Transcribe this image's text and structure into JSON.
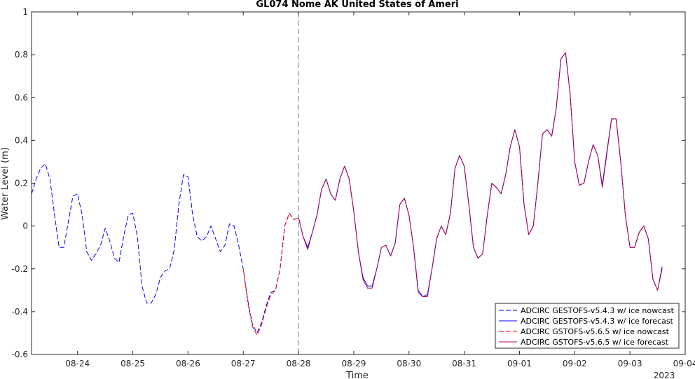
{
  "chart_data": {
    "type": "line",
    "title": "GL074 Nome AK United States of Ameri",
    "xlabel": "Time",
    "ylabel": "Water Level (m)",
    "year_label": "2023",
    "xlim": [
      "2023-08-23 04:00",
      "2023-09-04 00:00"
    ],
    "ylim": [
      -0.6,
      1.0
    ],
    "yticks": [
      -0.6,
      -0.4,
      -0.2,
      0,
      0.2,
      0.4,
      0.6,
      0.8,
      1
    ],
    "ytick_labels": [
      "-0.6",
      "-0.4",
      "-0.2",
      "0",
      "0.2",
      "0.4",
      "0.6",
      "0.8",
      "1"
    ],
    "xticks": [
      "2023-08-24",
      "2023-08-25",
      "2023-08-26",
      "2023-08-27",
      "2023-08-28",
      "2023-08-29",
      "2023-08-30",
      "2023-08-31",
      "2023-09-01",
      "2023-09-02",
      "2023-09-03",
      "2023-09-04"
    ],
    "xtick_labels": [
      "08-24",
      "08-25",
      "08-26",
      "08-27",
      "08-28",
      "08-29",
      "08-30",
      "08-31",
      "09-01",
      "09-02",
      "09-03",
      "09-04"
    ],
    "forecast_start": "2023-08-28 00:00",
    "grid": false,
    "legend_position": "bottom-right",
    "series": [
      {
        "name": "ADCIRC GESTOFS-v5.4.3 w/ ice nowcast",
        "color": "#0000ff",
        "style": "dashed",
        "points": [
          [
            "2023-08-23 04:00",
            0.15
          ],
          [
            "2023-08-23 06:00",
            0.22
          ],
          [
            "2023-08-23 08:00",
            0.27
          ],
          [
            "2023-08-23 10:00",
            0.29
          ],
          [
            "2023-08-23 12:00",
            0.22
          ],
          [
            "2023-08-23 14:00",
            0.05
          ],
          [
            "2023-08-23 16:00",
            -0.1
          ],
          [
            "2023-08-23 18:00",
            -0.1
          ],
          [
            "2023-08-23 20:00",
            0.02
          ],
          [
            "2023-08-23 22:00",
            0.14
          ],
          [
            "2023-08-24 00:00",
            0.15
          ],
          [
            "2023-08-24 02:00",
            0.05
          ],
          [
            "2023-08-24 04:00",
            -0.12
          ],
          [
            "2023-08-24 06:00",
            -0.16
          ],
          [
            "2023-08-24 08:00",
            -0.13
          ],
          [
            "2023-08-24 10:00",
            -0.09
          ],
          [
            "2023-08-24 12:00",
            -0.01
          ],
          [
            "2023-08-24 14:00",
            -0.07
          ],
          [
            "2023-08-24 16:00",
            -0.15
          ],
          [
            "2023-08-24 18:00",
            -0.17
          ],
          [
            "2023-08-24 20:00",
            -0.05
          ],
          [
            "2023-08-24 22:00",
            0.05
          ],
          [
            "2023-08-25 00:00",
            0.06
          ],
          [
            "2023-08-25 02:00",
            -0.05
          ],
          [
            "2023-08-25 04:00",
            -0.28
          ],
          [
            "2023-08-25 06:00",
            -0.36
          ],
          [
            "2023-08-25 08:00",
            -0.36
          ],
          [
            "2023-08-25 10:00",
            -0.32
          ],
          [
            "2023-08-25 12:00",
            -0.24
          ],
          [
            "2023-08-25 14:00",
            -0.21
          ],
          [
            "2023-08-25 16:00",
            -0.2
          ],
          [
            "2023-08-25 18:00",
            -0.11
          ],
          [
            "2023-08-25 20:00",
            0.1
          ],
          [
            "2023-08-25 22:00",
            0.24
          ],
          [
            "2023-08-26 00:00",
            0.23
          ],
          [
            "2023-08-26 02:00",
            0.05
          ],
          [
            "2023-08-26 04:00",
            -0.05
          ],
          [
            "2023-08-26 06:00",
            -0.07
          ],
          [
            "2023-08-26 08:00",
            -0.05
          ],
          [
            "2023-08-26 10:00",
            0.0
          ],
          [
            "2023-08-26 12:00",
            -0.06
          ],
          [
            "2023-08-26 14:00",
            -0.12
          ],
          [
            "2023-08-26 16:00",
            -0.09
          ],
          [
            "2023-08-26 18:00",
            0.01
          ],
          [
            "2023-08-26 20:00",
            0.0
          ],
          [
            "2023-08-26 22:00",
            -0.09
          ],
          [
            "2023-08-27 00:00",
            -0.2
          ],
          [
            "2023-08-27 02:00",
            -0.35
          ],
          [
            "2023-08-27 04:00",
            -0.46
          ],
          [
            "2023-08-27 06:00",
            -0.5
          ],
          [
            "2023-08-27 08:00",
            -0.45
          ],
          [
            "2023-08-27 10:00",
            -0.37
          ],
          [
            "2023-08-27 12:00",
            -0.31
          ],
          [
            "2023-08-27 14:00",
            -0.3
          ],
          [
            "2023-08-27 16:00",
            -0.2
          ],
          [
            "2023-08-27 18:00",
            0.0
          ],
          [
            "2023-08-27 20:00",
            0.06
          ],
          [
            "2023-08-27 22:00",
            0.03
          ],
          [
            "2023-08-28 00:00",
            0.04
          ]
        ]
      },
      {
        "name": "ADCIRC GESTOFS-v5.4.3 w/ ice forecast",
        "color": "#0000ff",
        "style": "solid",
        "points": [
          [
            "2023-08-28 00:00",
            0.04
          ],
          [
            "2023-08-28 02:00",
            -0.05
          ],
          [
            "2023-08-28 04:00",
            -0.1
          ],
          [
            "2023-08-28 06:00",
            -0.03
          ],
          [
            "2023-08-28 08:00",
            0.05
          ],
          [
            "2023-08-28 10:00",
            0.17
          ],
          [
            "2023-08-28 12:00",
            0.22
          ],
          [
            "2023-08-28 14:00",
            0.15
          ],
          [
            "2023-08-28 16:00",
            0.12
          ],
          [
            "2023-08-28 18:00",
            0.22
          ],
          [
            "2023-08-28 20:00",
            0.28
          ],
          [
            "2023-08-28 22:00",
            0.22
          ],
          [
            "2023-08-29 00:00",
            0.07
          ],
          [
            "2023-08-29 02:00",
            -0.12
          ],
          [
            "2023-08-29 04:00",
            -0.24
          ],
          [
            "2023-08-29 06:00",
            -0.28
          ],
          [
            "2023-08-29 08:00",
            -0.28
          ],
          [
            "2023-08-29 10:00",
            -0.2
          ],
          [
            "2023-08-29 12:00",
            -0.1
          ],
          [
            "2023-08-29 14:00",
            -0.09
          ],
          [
            "2023-08-29 16:00",
            -0.14
          ],
          [
            "2023-08-29 18:00",
            -0.08
          ],
          [
            "2023-08-29 20:00",
            0.1
          ],
          [
            "2023-08-29 22:00",
            0.13
          ],
          [
            "2023-08-30 00:00",
            0.05
          ],
          [
            "2023-08-30 02:00",
            -0.1
          ],
          [
            "2023-08-30 04:00",
            -0.3
          ],
          [
            "2023-08-30 06:00",
            -0.33
          ],
          [
            "2023-08-30 08:00",
            -0.32
          ],
          [
            "2023-08-30 10:00",
            -0.2
          ],
          [
            "2023-08-30 12:00",
            -0.06
          ],
          [
            "2023-08-30 14:00",
            0.0
          ],
          [
            "2023-08-30 16:00",
            -0.04
          ],
          [
            "2023-08-30 18:00",
            0.06
          ],
          [
            "2023-08-30 20:00",
            0.27
          ],
          [
            "2023-08-30 22:00",
            0.33
          ],
          [
            "2023-08-31 00:00",
            0.28
          ],
          [
            "2023-08-31 02:00",
            0.1
          ],
          [
            "2023-08-31 04:00",
            -0.1
          ],
          [
            "2023-08-31 06:00",
            -0.15
          ],
          [
            "2023-08-31 08:00",
            -0.13
          ],
          [
            "2023-08-31 10:00",
            0.05
          ],
          [
            "2023-08-31 12:00",
            0.2
          ],
          [
            "2023-08-31 14:00",
            0.18
          ],
          [
            "2023-08-31 16:00",
            0.15
          ],
          [
            "2023-08-31 18:00",
            0.24
          ],
          [
            "2023-08-31 20:00",
            0.37
          ],
          [
            "2023-08-31 22:00",
            0.45
          ],
          [
            "2023-09-01 00:00",
            0.37
          ],
          [
            "2023-09-01 02:00",
            0.1
          ],
          [
            "2023-09-01 04:00",
            -0.04
          ],
          [
            "2023-09-01 06:00",
            0.0
          ],
          [
            "2023-09-01 08:00",
            0.2
          ],
          [
            "2023-09-01 10:00",
            0.43
          ],
          [
            "2023-09-01 12:00",
            0.45
          ],
          [
            "2023-09-01 14:00",
            0.42
          ],
          [
            "2023-09-01 16:00",
            0.55
          ],
          [
            "2023-09-01 18:00",
            0.78
          ],
          [
            "2023-09-01 20:00",
            0.81
          ],
          [
            "2023-09-01 22:00",
            0.62
          ],
          [
            "2023-09-02 00:00",
            0.3
          ],
          [
            "2023-09-02 02:00",
            0.19
          ],
          [
            "2023-09-02 04:00",
            0.2
          ],
          [
            "2023-09-02 06:00",
            0.3
          ],
          [
            "2023-09-02 08:00",
            0.38
          ],
          [
            "2023-09-02 10:00",
            0.33
          ],
          [
            "2023-09-02 12:00",
            0.19
          ],
          [
            "2023-09-02 14:00",
            0.35
          ],
          [
            "2023-09-02 16:00",
            0.5
          ],
          [
            "2023-09-02 18:00",
            0.5
          ],
          [
            "2023-09-02 20:00",
            0.3
          ],
          [
            "2023-09-02 22:00",
            0.05
          ],
          [
            "2023-09-03 00:00",
            -0.1
          ],
          [
            "2023-09-03 02:00",
            -0.1
          ],
          [
            "2023-09-03 04:00",
            -0.03
          ],
          [
            "2023-09-03 06:00",
            0.0
          ],
          [
            "2023-09-03 08:00",
            -0.06
          ],
          [
            "2023-09-03 10:00",
            -0.25
          ],
          [
            "2023-09-03 12:00",
            -0.3
          ],
          [
            "2023-09-03 14:00",
            -0.19
          ]
        ]
      },
      {
        "name": "ADCIRC GSTOFS-v5.6.5 w/ ice nowcast",
        "color": "#ff0000",
        "style": "dashed",
        "points": [
          [
            "2023-08-27 00:00",
            -0.2
          ],
          [
            "2023-08-27 02:00",
            -0.36
          ],
          [
            "2023-08-27 04:00",
            -0.47
          ],
          [
            "2023-08-27 06:00",
            -0.51
          ],
          [
            "2023-08-27 08:00",
            -0.46
          ],
          [
            "2023-08-27 10:00",
            -0.38
          ],
          [
            "2023-08-27 12:00",
            -0.32
          ],
          [
            "2023-08-27 14:00",
            -0.3
          ],
          [
            "2023-08-27 16:00",
            -0.2
          ],
          [
            "2023-08-27 18:00",
            0.0
          ],
          [
            "2023-08-27 20:00",
            0.06
          ],
          [
            "2023-08-27 22:00",
            0.03
          ],
          [
            "2023-08-28 00:00",
            0.04
          ]
        ]
      },
      {
        "name": "ADCIRC GSTOFS-v5.6.5 w/ ice forecast",
        "color": "#b0004e",
        "style": "solid",
        "points": [
          [
            "2023-08-28 00:00",
            0.04
          ],
          [
            "2023-08-28 02:00",
            -0.05
          ],
          [
            "2023-08-28 04:00",
            -0.11
          ],
          [
            "2023-08-28 06:00",
            -0.03
          ],
          [
            "2023-08-28 08:00",
            0.05
          ],
          [
            "2023-08-28 10:00",
            0.17
          ],
          [
            "2023-08-28 12:00",
            0.22
          ],
          [
            "2023-08-28 14:00",
            0.15
          ],
          [
            "2023-08-28 16:00",
            0.12
          ],
          [
            "2023-08-28 18:00",
            0.22
          ],
          [
            "2023-08-28 20:00",
            0.28
          ],
          [
            "2023-08-28 22:00",
            0.22
          ],
          [
            "2023-08-29 00:00",
            0.07
          ],
          [
            "2023-08-29 02:00",
            -0.12
          ],
          [
            "2023-08-29 04:00",
            -0.25
          ],
          [
            "2023-08-29 06:00",
            -0.29
          ],
          [
            "2023-08-29 08:00",
            -0.29
          ],
          [
            "2023-08-29 10:00",
            -0.2
          ],
          [
            "2023-08-29 12:00",
            -0.1
          ],
          [
            "2023-08-29 14:00",
            -0.09
          ],
          [
            "2023-08-29 16:00",
            -0.14
          ],
          [
            "2023-08-29 18:00",
            -0.08
          ],
          [
            "2023-08-29 20:00",
            0.1
          ],
          [
            "2023-08-29 22:00",
            0.13
          ],
          [
            "2023-08-30 00:00",
            0.05
          ],
          [
            "2023-08-30 02:00",
            -0.1
          ],
          [
            "2023-08-30 04:00",
            -0.31
          ],
          [
            "2023-08-30 06:00",
            -0.33
          ],
          [
            "2023-08-30 08:00",
            -0.33
          ],
          [
            "2023-08-30 10:00",
            -0.2
          ],
          [
            "2023-08-30 12:00",
            -0.06
          ],
          [
            "2023-08-30 14:00",
            0.0
          ],
          [
            "2023-08-30 16:00",
            -0.04
          ],
          [
            "2023-08-30 18:00",
            0.06
          ],
          [
            "2023-08-30 20:00",
            0.27
          ],
          [
            "2023-08-30 22:00",
            0.33
          ],
          [
            "2023-08-31 00:00",
            0.28
          ],
          [
            "2023-08-31 02:00",
            0.1
          ],
          [
            "2023-08-31 04:00",
            -0.1
          ],
          [
            "2023-08-31 06:00",
            -0.15
          ],
          [
            "2023-08-31 08:00",
            -0.13
          ],
          [
            "2023-08-31 10:00",
            0.05
          ],
          [
            "2023-08-31 12:00",
            0.2
          ],
          [
            "2023-08-31 14:00",
            0.18
          ],
          [
            "2023-08-31 16:00",
            0.15
          ],
          [
            "2023-08-31 18:00",
            0.24
          ],
          [
            "2023-08-31 20:00",
            0.37
          ],
          [
            "2023-08-31 22:00",
            0.45
          ],
          [
            "2023-09-01 00:00",
            0.37
          ],
          [
            "2023-09-01 02:00",
            0.1
          ],
          [
            "2023-09-01 04:00",
            -0.04
          ],
          [
            "2023-09-01 06:00",
            0.0
          ],
          [
            "2023-09-01 08:00",
            0.2
          ],
          [
            "2023-09-01 10:00",
            0.43
          ],
          [
            "2023-09-01 12:00",
            0.45
          ],
          [
            "2023-09-01 14:00",
            0.42
          ],
          [
            "2023-09-01 16:00",
            0.55
          ],
          [
            "2023-09-01 18:00",
            0.78
          ],
          [
            "2023-09-01 20:00",
            0.81
          ],
          [
            "2023-09-01 22:00",
            0.62
          ],
          [
            "2023-09-02 00:00",
            0.3
          ],
          [
            "2023-09-02 02:00",
            0.19
          ],
          [
            "2023-09-02 04:00",
            0.2
          ],
          [
            "2023-09-02 06:00",
            0.3
          ],
          [
            "2023-09-02 08:00",
            0.38
          ],
          [
            "2023-09-02 10:00",
            0.33
          ],
          [
            "2023-09-02 12:00",
            0.18
          ],
          [
            "2023-09-02 14:00",
            0.34
          ],
          [
            "2023-09-02 16:00",
            0.5
          ],
          [
            "2023-09-02 18:00",
            0.5
          ],
          [
            "2023-09-02 20:00",
            0.3
          ],
          [
            "2023-09-02 22:00",
            0.05
          ],
          [
            "2023-09-03 00:00",
            -0.1
          ],
          [
            "2023-09-03 02:00",
            -0.1
          ],
          [
            "2023-09-03 04:00",
            -0.03
          ],
          [
            "2023-09-03 06:00",
            0.0
          ],
          [
            "2023-09-03 08:00",
            -0.06
          ],
          [
            "2023-09-03 10:00",
            -0.25
          ],
          [
            "2023-09-03 12:00",
            -0.3
          ],
          [
            "2023-09-03 14:00",
            -0.2
          ]
        ]
      }
    ]
  }
}
